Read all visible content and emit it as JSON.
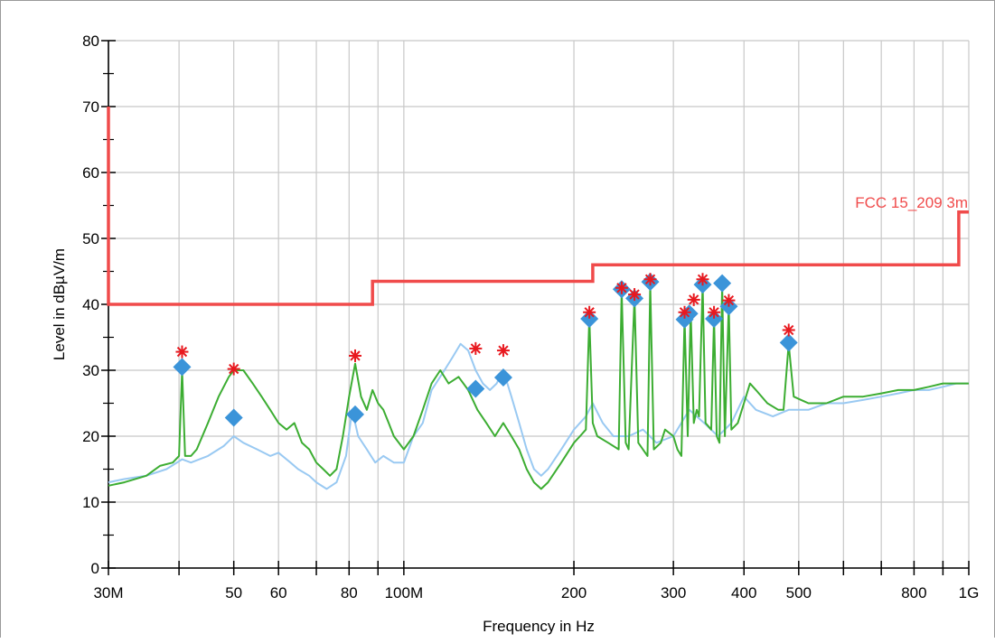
{
  "chart_data": {
    "type": "line",
    "xlabel": "Frequency in Hz",
    "ylabel": "Level in dBµV/m",
    "x_scale": "log",
    "xlim": [
      30000000,
      1000000000
    ],
    "ylim": [
      0,
      80
    ],
    "grid": true,
    "x_ticks": [
      {
        "value": 30000000,
        "label": "30M"
      },
      {
        "value": 40000000,
        "label": ""
      },
      {
        "value": 50000000,
        "label": "50"
      },
      {
        "value": 60000000,
        "label": "60"
      },
      {
        "value": 70000000,
        "label": ""
      },
      {
        "value": 80000000,
        "label": "80"
      },
      {
        "value": 90000000,
        "label": ""
      },
      {
        "value": 100000000,
        "label": "100M"
      },
      {
        "value": 200000000,
        "label": "200"
      },
      {
        "value": 300000000,
        "label": "300"
      },
      {
        "value": 400000000,
        "label": "400"
      },
      {
        "value": 500000000,
        "label": "500"
      },
      {
        "value": 600000000,
        "label": ""
      },
      {
        "value": 700000000,
        "label": ""
      },
      {
        "value": 800000000,
        "label": "800"
      },
      {
        "value": 900000000,
        "label": ""
      },
      {
        "value": 1000000000,
        "label": "1G"
      }
    ],
    "y_ticks": [
      {
        "value": 0,
        "label": "0"
      },
      {
        "value": 10,
        "label": "10"
      },
      {
        "value": 20,
        "label": "20"
      },
      {
        "value": 30,
        "label": "30"
      },
      {
        "value": 40,
        "label": "40"
      },
      {
        "value": 50,
        "label": "50"
      },
      {
        "value": 60,
        "label": "60"
      },
      {
        "value": 70,
        "label": "70"
      },
      {
        "value": 80,
        "label": "80"
      }
    ],
    "limit_line": {
      "name": "FCC 15_209 3m",
      "color": "#f04b4b",
      "points": [
        [
          30000000,
          70
        ],
        [
          30000000,
          40
        ],
        [
          88000000,
          40
        ],
        [
          88000000,
          43.5
        ],
        [
          216000000,
          43.5
        ],
        [
          216000000,
          46
        ],
        [
          960000000,
          46
        ],
        [
          960000000,
          54
        ],
        [
          1000000000,
          54
        ]
      ]
    },
    "series": [
      {
        "color": "#99c9f2",
        "points": [
          [
            30000000,
            13
          ],
          [
            32000000,
            13.5
          ],
          [
            35000000,
            14
          ],
          [
            38000000,
            15
          ],
          [
            40500000,
            16.5
          ],
          [
            42000000,
            16
          ],
          [
            45000000,
            17
          ],
          [
            48000000,
            18.5
          ],
          [
            50000000,
            20
          ],
          [
            52000000,
            19
          ],
          [
            55000000,
            18
          ],
          [
            58000000,
            17
          ],
          [
            60000000,
            17.5
          ],
          [
            63000000,
            16
          ],
          [
            65000000,
            15
          ],
          [
            68000000,
            14
          ],
          [
            70000000,
            13
          ],
          [
            73000000,
            12
          ],
          [
            76000000,
            13
          ],
          [
            79000000,
            17
          ],
          [
            81000000,
            24
          ],
          [
            83000000,
            20
          ],
          [
            86000000,
            18
          ],
          [
            89000000,
            16
          ],
          [
            92000000,
            17
          ],
          [
            96000000,
            16
          ],
          [
            100000000,
            16
          ],
          [
            104000000,
            20
          ],
          [
            108000000,
            22
          ],
          [
            112000000,
            27
          ],
          [
            118000000,
            30
          ],
          [
            122000000,
            32
          ],
          [
            126000000,
            34
          ],
          [
            130000000,
            33
          ],
          [
            134000000,
            30
          ],
          [
            138000000,
            28
          ],
          [
            142000000,
            27
          ],
          [
            146000000,
            28
          ],
          [
            150000000,
            30
          ],
          [
            155000000,
            26
          ],
          [
            160000000,
            22
          ],
          [
            165000000,
            18
          ],
          [
            170000000,
            15
          ],
          [
            175000000,
            14
          ],
          [
            180000000,
            15
          ],
          [
            190000000,
            18
          ],
          [
            200000000,
            21
          ],
          [
            210000000,
            23
          ],
          [
            216000000,
            25
          ],
          [
            225000000,
            22
          ],
          [
            235000000,
            20
          ],
          [
            250000000,
            20
          ],
          [
            265000000,
            21
          ],
          [
            280000000,
            19
          ],
          [
            300000000,
            20
          ],
          [
            320000000,
            24
          ],
          [
            340000000,
            22
          ],
          [
            360000000,
            20
          ],
          [
            380000000,
            22
          ],
          [
            400000000,
            26
          ],
          [
            420000000,
            24
          ],
          [
            450000000,
            23
          ],
          [
            480000000,
            24
          ],
          [
            520000000,
            24
          ],
          [
            560000000,
            25
          ],
          [
            600000000,
            25
          ],
          [
            650000000,
            25.5
          ],
          [
            700000000,
            26
          ],
          [
            750000000,
            26.5
          ],
          [
            800000000,
            27
          ],
          [
            850000000,
            27
          ],
          [
            900000000,
            27.5
          ],
          [
            950000000,
            28
          ],
          [
            1000000000,
            28
          ]
        ]
      },
      {
        "color": "#3cad32",
        "points": [
          [
            30000000,
            12.5
          ],
          [
            32000000,
            13
          ],
          [
            35000000,
            14
          ],
          [
            37000000,
            15.5
          ],
          [
            39000000,
            16
          ],
          [
            40000000,
            17
          ],
          [
            40500000,
            30
          ],
          [
            41000000,
            17
          ],
          [
            42000000,
            17
          ],
          [
            43000000,
            18
          ],
          [
            45000000,
            22
          ],
          [
            47000000,
            26
          ],
          [
            49000000,
            29
          ],
          [
            50000000,
            30
          ],
          [
            52000000,
            30
          ],
          [
            54000000,
            28
          ],
          [
            56000000,
            26
          ],
          [
            58000000,
            24
          ],
          [
            60000000,
            22
          ],
          [
            62000000,
            21
          ],
          [
            64000000,
            22
          ],
          [
            66000000,
            19
          ],
          [
            68000000,
            18
          ],
          [
            70000000,
            16
          ],
          [
            72000000,
            15
          ],
          [
            74000000,
            14
          ],
          [
            76000000,
            15
          ],
          [
            78000000,
            20
          ],
          [
            80000000,
            26
          ],
          [
            82000000,
            31
          ],
          [
            84000000,
            26
          ],
          [
            86000000,
            24
          ],
          [
            88000000,
            27
          ],
          [
            90000000,
            25
          ],
          [
            92000000,
            24
          ],
          [
            94000000,
            22
          ],
          [
            96000000,
            20
          ],
          [
            100000000,
            18
          ],
          [
            104000000,
            20
          ],
          [
            108000000,
            24
          ],
          [
            112000000,
            28
          ],
          [
            116000000,
            30
          ],
          [
            120000000,
            28
          ],
          [
            125000000,
            29
          ],
          [
            130000000,
            27
          ],
          [
            135000000,
            24
          ],
          [
            140000000,
            22
          ],
          [
            145000000,
            20
          ],
          [
            150000000,
            22
          ],
          [
            155000000,
            20
          ],
          [
            160000000,
            18
          ],
          [
            165000000,
            15
          ],
          [
            170000000,
            13
          ],
          [
            175000000,
            12
          ],
          [
            180000000,
            13
          ],
          [
            190000000,
            16
          ],
          [
            200000000,
            19
          ],
          [
            205000000,
            20
          ],
          [
            210000000,
            21
          ],
          [
            213000000,
            38
          ],
          [
            216000000,
            22
          ],
          [
            220000000,
            20
          ],
          [
            230000000,
            19
          ],
          [
            240000000,
            18
          ],
          [
            243000000,
            42
          ],
          [
            247000000,
            19
          ],
          [
            250000000,
            18
          ],
          [
            256000000,
            41
          ],
          [
            260000000,
            19
          ],
          [
            270000000,
            17
          ],
          [
            273000000,
            43
          ],
          [
            277000000,
            18
          ],
          [
            285000000,
            19
          ],
          [
            290000000,
            21
          ],
          [
            300000000,
            20
          ],
          [
            305000000,
            18
          ],
          [
            310000000,
            17
          ],
          [
            314000000,
            38
          ],
          [
            318000000,
            20
          ],
          [
            322000000,
            39
          ],
          [
            326000000,
            22
          ],
          [
            330000000,
            24
          ],
          [
            333000000,
            23
          ],
          [
            338000000,
            43
          ],
          [
            342000000,
            22
          ],
          [
            350000000,
            21
          ],
          [
            354000000,
            38
          ],
          [
            358000000,
            20
          ],
          [
            362000000,
            19
          ],
          [
            366000000,
            43
          ],
          [
            370000000,
            20
          ],
          [
            376000000,
            40
          ],
          [
            380000000,
            21
          ],
          [
            390000000,
            22
          ],
          [
            400000000,
            25
          ],
          [
            410000000,
            28
          ],
          [
            420000000,
            27
          ],
          [
            440000000,
            25
          ],
          [
            460000000,
            24
          ],
          [
            470000000,
            24
          ],
          [
            480000000,
            34
          ],
          [
            490000000,
            26
          ],
          [
            520000000,
            25
          ],
          [
            560000000,
            25
          ],
          [
            600000000,
            26
          ],
          [
            650000000,
            26
          ],
          [
            700000000,
            26.5
          ],
          [
            750000000,
            27
          ],
          [
            800000000,
            27
          ],
          [
            850000000,
            27.5
          ],
          [
            900000000,
            28
          ],
          [
            950000000,
            28
          ],
          [
            1000000000,
            28
          ]
        ]
      }
    ],
    "peak_markers": {
      "symbol": "asterisk",
      "color": "#e8191f",
      "points": [
        [
          40500000,
          32.8
        ],
        [
          50000000,
          30.2
        ],
        [
          82000000,
          32.2
        ],
        [
          134000000,
          33.3
        ],
        [
          150000000,
          33.0
        ],
        [
          213000000,
          38.8
        ],
        [
          243000000,
          42.5
        ],
        [
          256000000,
          41.5
        ],
        [
          273000000,
          43.8
        ],
        [
          314000000,
          38.8
        ],
        [
          326000000,
          40.7
        ],
        [
          338000000,
          43.8
        ],
        [
          354000000,
          38.8
        ],
        [
          376000000,
          40.6
        ],
        [
          480000000,
          36.1
        ]
      ]
    },
    "final_markers": {
      "symbol": "diamond",
      "color": "#3b94d9",
      "points": [
        [
          40500000,
          30.5
        ],
        [
          50000000,
          22.8
        ],
        [
          82000000,
          23.3
        ],
        [
          134000000,
          27.2
        ],
        [
          150000000,
          28.9
        ],
        [
          213000000,
          37.8
        ],
        [
          243000000,
          42.3
        ],
        [
          256000000,
          40.9
        ],
        [
          273000000,
          43.4
        ],
        [
          314000000,
          37.7
        ],
        [
          320000000,
          38.6
        ],
        [
          338000000,
          43.0
        ],
        [
          354000000,
          37.8
        ],
        [
          366000000,
          43.2
        ],
        [
          376000000,
          39.7
        ],
        [
          480000000,
          34.2
        ]
      ]
    }
  }
}
